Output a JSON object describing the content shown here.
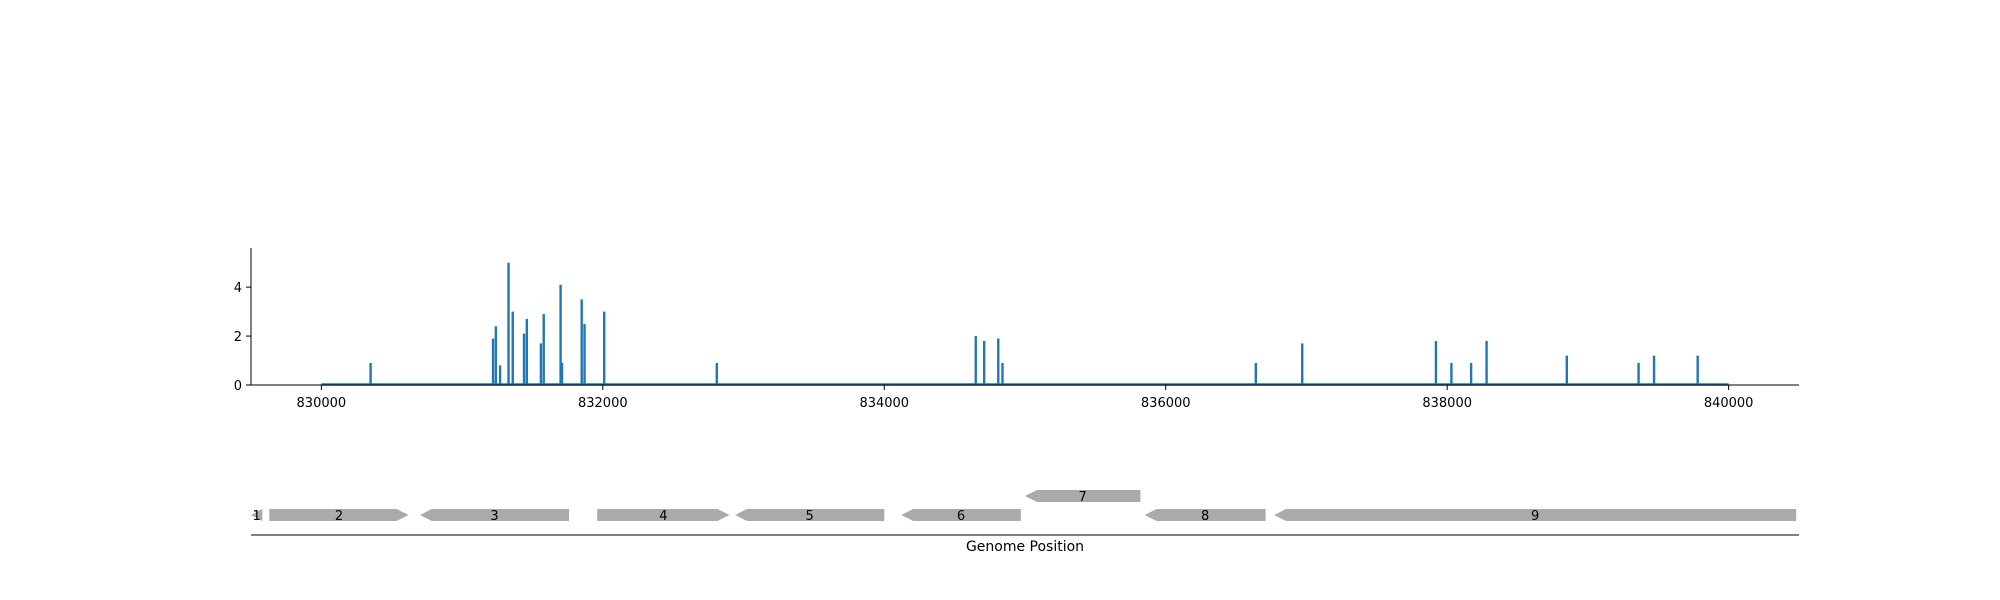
{
  "chart_data": [
    {
      "type": "bar",
      "title": "",
      "xlabel": "",
      "ylabel": "",
      "xlim": [
        829500,
        840500
      ],
      "ylim": [
        0,
        5.6
      ],
      "x_ticks": [
        830000,
        832000,
        834000,
        836000,
        838000,
        840000
      ],
      "x_tick_labels": [
        "830000",
        "832000",
        "834000",
        "836000",
        "838000",
        "840000"
      ],
      "y_ticks": [
        0,
        2,
        4
      ],
      "y_tick_labels": [
        "0",
        "2",
        "4"
      ],
      "baseline_range": [
        830000,
        840000
      ],
      "grid": false,
      "colors": {
        "bars": "#1f77b4",
        "axes": "#000000"
      },
      "points": [
        {
          "x": 830350,
          "y": 0.9
        },
        {
          "x": 831220,
          "y": 1.9
        },
        {
          "x": 831240,
          "y": 2.4
        },
        {
          "x": 831270,
          "y": 0.8
        },
        {
          "x": 831330,
          "y": 5.0
        },
        {
          "x": 831360,
          "y": 3.0
        },
        {
          "x": 831440,
          "y": 2.1
        },
        {
          "x": 831460,
          "y": 2.7
        },
        {
          "x": 831560,
          "y": 1.7
        },
        {
          "x": 831580,
          "y": 2.9
        },
        {
          "x": 831700,
          "y": 4.1
        },
        {
          "x": 831710,
          "y": 0.9
        },
        {
          "x": 831850,
          "y": 3.5
        },
        {
          "x": 831870,
          "y": 2.5
        },
        {
          "x": 832010,
          "y": 3.0
        },
        {
          "x": 832810,
          "y": 0.9
        },
        {
          "x": 834650,
          "y": 2.0
        },
        {
          "x": 834710,
          "y": 1.8
        },
        {
          "x": 834810,
          "y": 1.9
        },
        {
          "x": 834840,
          "y": 0.9
        },
        {
          "x": 836640,
          "y": 0.9
        },
        {
          "x": 836970,
          "y": 1.7
        },
        {
          "x": 837920,
          "y": 1.8
        },
        {
          "x": 838030,
          "y": 0.9
        },
        {
          "x": 838170,
          "y": 0.9
        },
        {
          "x": 838280,
          "y": 1.8
        },
        {
          "x": 838850,
          "y": 1.2
        },
        {
          "x": 839360,
          "y": 0.9
        },
        {
          "x": 839470,
          "y": 1.2
        },
        {
          "x": 839780,
          "y": 1.2
        }
      ]
    },
    {
      "type": "gene_map",
      "xlabel": "Genome Position",
      "xlim": [
        829500,
        840500
      ],
      "colors": {
        "gene": "#aaaaaa",
        "axis": "#000000"
      },
      "features": [
        {
          "label": "1",
          "start": 829500,
          "end": 829580,
          "strand": -1,
          "row": 0
        },
        {
          "label": "2",
          "start": 829630,
          "end": 830620,
          "strand": 1,
          "row": 0
        },
        {
          "label": "3",
          "start": 830700,
          "end": 831760,
          "strand": -1,
          "row": 0
        },
        {
          "label": "4",
          "start": 831960,
          "end": 832900,
          "strand": 1,
          "row": 0
        },
        {
          "label": "5",
          "start": 832940,
          "end": 834000,
          "strand": -1,
          "row": 0
        },
        {
          "label": "6",
          "start": 834120,
          "end": 834970,
          "strand": -1,
          "row": 0
        },
        {
          "label": "7",
          "start": 835000,
          "end": 835820,
          "strand": -1,
          "row": 1
        },
        {
          "label": "8",
          "start": 835850,
          "end": 836710,
          "strand": -1,
          "row": 0
        },
        {
          "label": "9",
          "start": 836770,
          "end": 840480,
          "strand": -1,
          "row": 0
        }
      ]
    }
  ]
}
